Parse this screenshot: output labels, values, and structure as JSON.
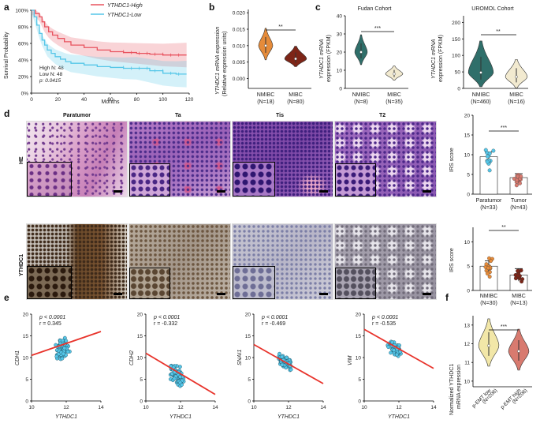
{
  "panel_letters": {
    "a": "a",
    "b": "b",
    "c": "c",
    "d": "d",
    "e": "e",
    "f": "f"
  },
  "colors": {
    "red": "#e8535f",
    "cyan": "#55c6e8",
    "orange": "#e58b3a",
    "darkred": "#7d2517",
    "teal": "#2f6f6a",
    "cream": "#f2ead0",
    "yellow": "#f2e7a8",
    "salmon": "#d87a6f"
  },
  "panel_a": {
    "ylabel": "Survival Probability",
    "xlabel": "Months",
    "legend_high": "YTHDC1-High",
    "legend_low": "YTHDC1-Low",
    "stats_high": "High N: 48",
    "stats_low": "Low N: 48",
    "stats_p": "p: 0.0415"
  },
  "panel_b": {
    "ylabel_1": "YTHDC1 mRNA expression",
    "ylabel_2": "(Relative expression units)",
    "sig": "**",
    "cat1": "NMIBC",
    "n1": "(N=18)",
    "cat2": "MIBC",
    "n2": "(N=80)"
  },
  "panel_c": {
    "title_left": "Fudan Cohort",
    "title_right": "UROMOL Cohort",
    "ylabel_left_1": "YTHDC1 mRNA",
    "ylabel_left_2": "expression (FPKM)",
    "ylabel_right_1": "YTHDC1 mRNA",
    "ylabel_right_2": "expression (FPKM)",
    "sig_left": "***",
    "sig_right": "**",
    "left_cat1": "NMIBC",
    "left_n1": "(N=8)",
    "left_cat2": "MIBC",
    "left_n2": "(N=35)",
    "right_cat1": "NMIBC",
    "right_n1": "(N=460)",
    "right_cat2": "MIBC",
    "right_n2": "(N=16)"
  },
  "panel_d": {
    "col_paratumor": "Paratumor",
    "col_ta": "Ta",
    "col_tis": "Tis",
    "col_t2": "T2",
    "row_he": "HE",
    "row_ythdc1": "YTHDC1",
    "bar1_ylabel": "IRS score",
    "bar1_sig": "***",
    "bar1_cat1": "Paratumor",
    "bar1_n1": "(N=33)",
    "bar1_cat2": "Tumor",
    "bar1_n2": "(N=43)",
    "bar2_ylabel": "IRS score",
    "bar2_sig": "**",
    "bar2_cat1": "NMIBC",
    "bar2_n1": "(N=30)",
    "bar2_cat2": "MIBC",
    "bar2_n2": "(N=13)"
  },
  "panel_e": {
    "xlabel": "YTHDC1",
    "plots": [
      {
        "ylabel": "CDH1",
        "p": "p < 0.0001",
        "r": "r = 0.345"
      },
      {
        "ylabel": "CDH2",
        "p": "p < 0.0001",
        "r": "r = -0.332"
      },
      {
        "ylabel": "SNAI1",
        "p": "p < 0.0001",
        "r": "r = -0.469"
      },
      {
        "ylabel": "VIM",
        "p": "p < 0.0001",
        "r": "r = -0.535"
      }
    ]
  },
  "panel_f": {
    "ylabel_1": "Normalized YTHDC1",
    "ylabel_2": "mRNA expression",
    "sig": "***",
    "cat1": "p-EMT low",
    "n1": "(N=206)",
    "cat2": "p-EMT high",
    "n2": "(N=206)"
  },
  "chart_data": [
    {
      "type": "line",
      "panel": "a",
      "xlabel": "Months",
      "ylabel": "Survival Probability",
      "xlim": [
        0,
        120
      ],
      "ylim": [
        0,
        100
      ],
      "xticks": [
        "0",
        "20",
        "40",
        "60",
        "80",
        "100",
        "120"
      ],
      "yticks": [
        "0%",
        "20%",
        "40%",
        "60%",
        "80%",
        "100%"
      ],
      "series": [
        {
          "name": "YTHDC1-High",
          "x": [
            0,
            3,
            6,
            8,
            10,
            13,
            16,
            20,
            25,
            30,
            40,
            50,
            60,
            70,
            80,
            90,
            100,
            110,
            118
          ],
          "values": [
            100,
            96,
            92,
            86,
            80,
            74,
            70,
            66,
            62,
            58,
            55,
            52,
            50,
            49,
            48,
            47,
            46,
            46,
            46
          ]
        },
        {
          "name": "YTHDC1-Low",
          "x": [
            0,
            2,
            4,
            6,
            8,
            10,
            12,
            15,
            18,
            22,
            26,
            30,
            40,
            50,
            60,
            70,
            80,
            90,
            100,
            110,
            118
          ],
          "values": [
            100,
            92,
            82,
            72,
            64,
            58,
            52,
            48,
            44,
            41,
            38,
            36,
            34,
            32,
            31,
            30,
            30,
            27,
            24,
            23,
            23
          ]
        }
      ]
    },
    {
      "type": "violin",
      "panel": "b",
      "ylabel": "YTHDC1 mRNA expression (Relative expression units)",
      "yticks": [
        "0.000",
        "0.005",
        "0.010",
        "0.015",
        "0.020"
      ],
      "ylim": [
        -0.003,
        0.021
      ],
      "categories": [
        "NMIBC (N=18)",
        "MIBC (N=80)"
      ],
      "values": [
        0.01,
        0.006
      ]
    },
    {
      "type": "violin",
      "panel": "c-left",
      "ylabel": "YTHDC1 mRNA expression (FPKM)",
      "yticks": [
        "0",
        "10",
        "20",
        "30",
        "40"
      ],
      "ylim": [
        0,
        40
      ],
      "categories": [
        "NMIBC (N=8)",
        "MIBC (N=35)"
      ],
      "values": [
        20,
        8
      ]
    },
    {
      "type": "violin",
      "panel": "c-right",
      "ylabel": "YTHDC1 mRNA expression (FPKM)",
      "yticks": [
        "0",
        "50",
        "100",
        "150",
        "200"
      ],
      "ylim": [
        0,
        220
      ],
      "categories": [
        "NMIBC (N=460)",
        "MIBC (N=16)"
      ],
      "values": [
        48,
        35
      ]
    },
    {
      "type": "bar",
      "panel": "d-top",
      "ylabel": "IRS score",
      "yticks": [
        "0",
        "5",
        "10",
        "15",
        "20"
      ],
      "ylim": [
        0,
        20
      ],
      "categories": [
        "Paratumor (N=33)",
        "Tumor (N=43)"
      ],
      "values": [
        9.5,
        4.2
      ],
      "errors": [
        1.2,
        1.0
      ]
    },
    {
      "type": "bar",
      "panel": "d-bottom",
      "ylabel": "IRS score",
      "yticks": [
        "0",
        "5",
        "10"
      ],
      "ylim": [
        0,
        13
      ],
      "categories": [
        "NMIBC (N=30)",
        "MIBC (N=13)"
      ],
      "values": [
        5.0,
        3.2
      ],
      "errors": [
        1.1,
        1.3
      ]
    },
    {
      "type": "scatter",
      "panel": "e",
      "xlabel": "YTHDC1",
      "xlim": [
        10,
        14
      ],
      "ylim": [
        0,
        20
      ],
      "xticks": [
        "10",
        "12",
        "14"
      ],
      "yticks": [
        "0",
        "5",
        "10",
        "15",
        "20"
      ],
      "series": [
        {
          "name": "CDH1",
          "fit": [
            [
              10,
              10.5
            ],
            [
              14,
              16.0
            ]
          ],
          "center": [
            11.8,
            12
          ],
          "spread": [
            0.5,
            3
          ]
        },
        {
          "name": "CDH2",
          "fit": [
            [
              10,
              11.0
            ],
            [
              14,
              1.5
            ]
          ],
          "center": [
            11.8,
            6
          ],
          "spread": [
            0.5,
            3
          ]
        },
        {
          "name": "SNAI1",
          "fit": [
            [
              10,
              13.0
            ],
            [
              14,
              4.0
            ]
          ],
          "center": [
            11.8,
            9
          ],
          "spread": [
            0.5,
            2
          ]
        },
        {
          "name": "VIM",
          "fit": [
            [
              10,
              16.5
            ],
            [
              14,
              7.5
            ]
          ],
          "center": [
            11.8,
            12
          ],
          "spread": [
            0.5,
            2
          ]
        }
      ]
    },
    {
      "type": "violin",
      "panel": "f",
      "ylabel": "Normalized YTHDC1 mRNA expression",
      "yticks": [
        "10",
        "11",
        "12",
        "13"
      ],
      "ylim": [
        9.7,
        13.5
      ],
      "categories": [
        "p-EMT low (N=206)",
        "p-EMT high (N=206)"
      ],
      "values": [
        11.9,
        11.6
      ]
    }
  ]
}
